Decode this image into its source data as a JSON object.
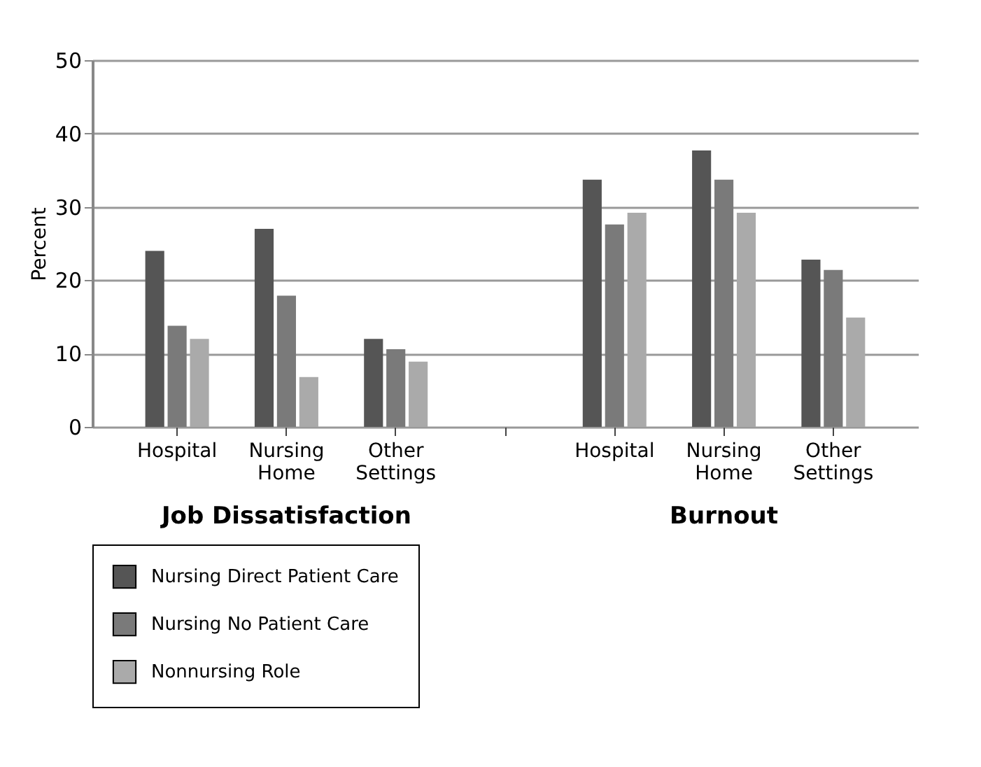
{
  "chart_data": {
    "type": "bar",
    "ylabel": "Percent",
    "categories": [
      "Hospital",
      "Nursing Home",
      "Other Settings",
      null,
      "Hospital",
      "Nursing Home",
      "Other Settings"
    ],
    "series": [
      {
        "name": "Nursing Direct Patient Care",
        "color": "#555555",
        "values": [
          24,
          27,
          12,
          null,
          33.7,
          37.7,
          22.8
        ]
      },
      {
        "name": "Nursing No Patient Care",
        "color": "#7a7a7a",
        "values": [
          13.8,
          17.9,
          10.6,
          null,
          27.6,
          33.7,
          21.4
        ]
      },
      {
        "name": "Nonnursing Role",
        "color": "#aaaaaa",
        "values": [
          12,
          6.8,
          8.9,
          null,
          29.2,
          29.2,
          14.9
        ]
      }
    ],
    "annotations": [
      "Job Dissatisfaction",
      "Burnout"
    ],
    "ylim": [
      0,
      50
    ],
    "yticks": [
      0,
      10,
      20,
      30,
      40,
      50
    ],
    "grid": "y",
    "legend": "bottom"
  }
}
